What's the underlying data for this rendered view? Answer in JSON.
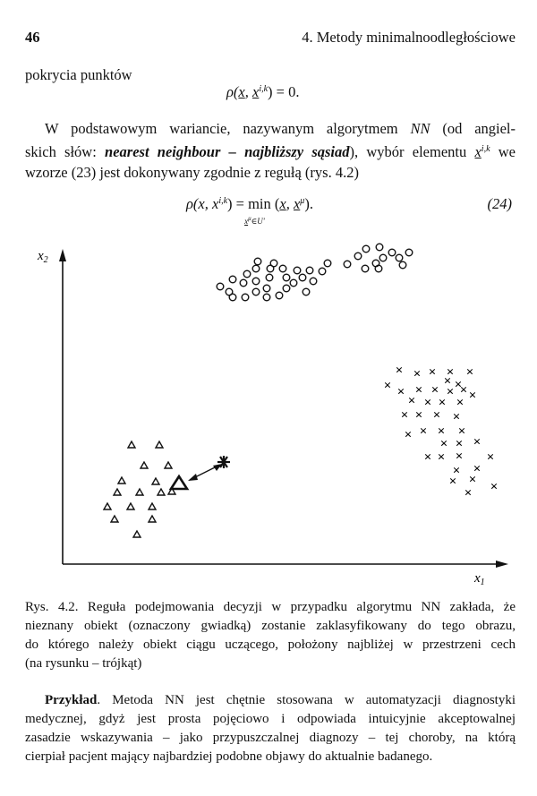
{
  "header": {
    "page_number": "46",
    "running_head": "4. Metody minimalnoodległościowe"
  },
  "intro_text": "pokrycia punktów",
  "eq23": {
    "lhs": "ρ(",
    "arg1": "x",
    "sep": ", ",
    "arg2": "x",
    "sup": "i,k",
    "rhs": ") = 0."
  },
  "paragraph": {
    "line1_a": "W podstawowym wariancie, nazywanym algorytmem ",
    "line1_nn": "NN",
    "line1_b": " (od angiel-",
    "line2_a": "skich słów: ",
    "line2_term": "nearest neighbour – najbliższy sąsiad",
    "line2_b": "), wybór elementu ",
    "line2_var": "x",
    "line2_sup": "i,k",
    "line2_c": " we",
    "line3": "wzorze (23) jest dokonywany zgodnie z regułą (rys. 4.2)"
  },
  "eq24": {
    "lhs": "ρ(x, x",
    "lhs_sup": "i,k",
    "mid": ") = ",
    "op": "min",
    "op_sub": "x",
    "op_sub_sup": "μ",
    "op_sub_rest": "∈U'",
    "rhs_a": " (",
    "rhs_x": "x",
    "rhs_sep": ", ",
    "rhs_x2": "x",
    "rhs_sup": "μ",
    "rhs_b": ").",
    "number": "(24)"
  },
  "figure": {
    "x_axis_label": "x",
    "x_axis_sub": "1",
    "y_axis_label": "x",
    "y_axis_sub": "2",
    "circle_marker": "o",
    "cross_marker": "×",
    "triangle_marker": "△",
    "unknown_marker": "✱"
  },
  "caption": {
    "line1": "Rys. 4.2. Reguła podejmowania decyzji w przypadku algorytmu NN zakłada, że",
    "line2": "nieznany obiekt (oznaczony gwiadką) zostanie zaklasyfikowany do tego obrazu,",
    "line3": "do którego należy obiekt ciągu uczącego, położony najbliżej w przestrzeni cech",
    "line4": "(na rysunku – trójkąt)"
  },
  "example": {
    "label": "Przykład",
    "line1_rest": ". Metoda NN jest chętnie stosowana w automatyzacji diagnostyki",
    "line2": "medycznej, gdyż jest prosta pojęciowo i odpowiada intuicyjnie akceptowalnej",
    "line3": "zasadzie wskazywania – jako przypuszczalnej diagnozy – tej choroby, na którą",
    "line4": "cierpiał pacjent mający najbardziej podobne objawy do aktualnie badanego."
  }
}
